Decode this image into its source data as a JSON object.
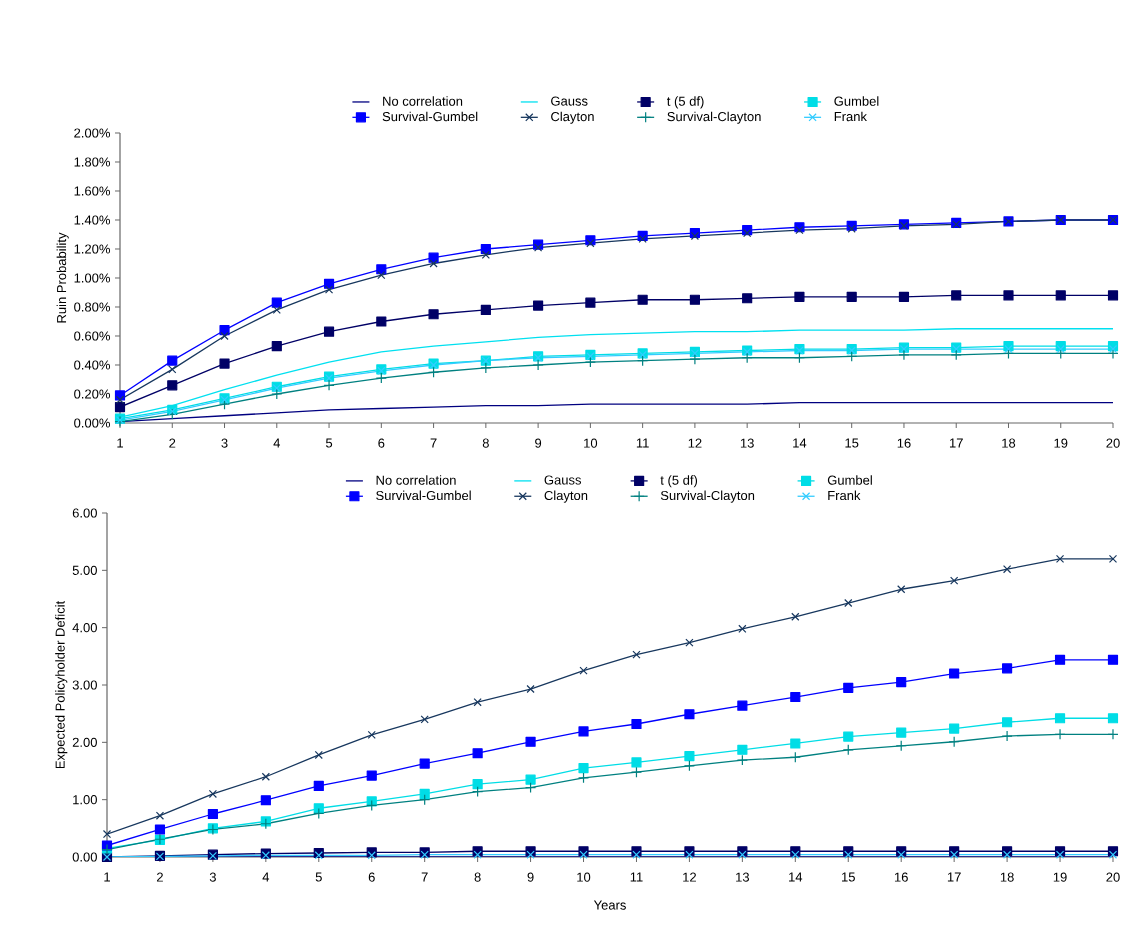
{
  "chart_data": [
    {
      "type": "line",
      "ylabel": "Ruin Probability",
      "legend": "top",
      "categories": [
        "1",
        "2",
        "3",
        "4",
        "5",
        "6",
        "7",
        "8",
        "9",
        "10",
        "11",
        "12",
        "13",
        "14",
        "15",
        "16",
        "17",
        "18",
        "19",
        "20"
      ],
      "ylim": [
        0,
        2
      ],
      "yticks": [
        {
          "value": 0,
          "label": "0.00%"
        },
        {
          "value": 0.2,
          "label": "0.20%"
        },
        {
          "value": 0.4,
          "label": "0.40%"
        },
        {
          "value": 0.6,
          "label": "0.60%"
        },
        {
          "value": 0.8,
          "label": "0.80%"
        },
        {
          "value": 1.0,
          "label": "1.00%"
        },
        {
          "value": 1.2,
          "label": "1.20%"
        },
        {
          "value": 1.4,
          "label": "1.40%"
        },
        {
          "value": 1.6,
          "label": "1.60%"
        },
        {
          "value": 1.8,
          "label": "1.80%"
        },
        {
          "value": 2.0,
          "label": "2.00%"
        }
      ],
      "series": [
        {
          "name": "No correlation",
          "color": "#000080",
          "marker": "none",
          "values": [
            0.01,
            0.03,
            0.05,
            0.07,
            0.09,
            0.1,
            0.11,
            0.12,
            0.12,
            0.13,
            0.13,
            0.13,
            0.13,
            0.14,
            0.14,
            0.14,
            0.14,
            0.14,
            0.14,
            0.14
          ]
        },
        {
          "name": "Gauss",
          "color": "#00e0f0",
          "marker": "none",
          "values": [
            0.04,
            0.12,
            0.23,
            0.33,
            0.42,
            0.49,
            0.53,
            0.56,
            0.59,
            0.61,
            0.62,
            0.63,
            0.63,
            0.64,
            0.64,
            0.64,
            0.65,
            0.65,
            0.65,
            0.65
          ]
        },
        {
          "name": "t (5 df)",
          "color": "#000066",
          "marker": "square",
          "values": [
            0.11,
            0.26,
            0.41,
            0.53,
            0.63,
            0.7,
            0.75,
            0.78,
            0.81,
            0.83,
            0.85,
            0.85,
            0.86,
            0.87,
            0.87,
            0.87,
            0.88,
            0.88,
            0.88,
            0.88
          ]
        },
        {
          "name": "Gumbel",
          "color": "#00dde6",
          "marker": "square",
          "values": [
            0.03,
            0.09,
            0.17,
            0.25,
            0.32,
            0.37,
            0.41,
            0.43,
            0.46,
            0.47,
            0.48,
            0.49,
            0.5,
            0.51,
            0.51,
            0.52,
            0.52,
            0.53,
            0.53,
            0.53
          ]
        },
        {
          "name": "Survival-Gumbel",
          "color": "#0000ff",
          "marker": "square",
          "values": [
            0.19,
            0.43,
            0.64,
            0.83,
            0.96,
            1.06,
            1.14,
            1.2,
            1.23,
            1.26,
            1.29,
            1.31,
            1.33,
            1.35,
            1.36,
            1.37,
            1.38,
            1.39,
            1.4,
            1.4
          ]
        },
        {
          "name": "Clayton",
          "color": "#17375e",
          "marker": "cross",
          "values": [
            0.16,
            0.37,
            0.6,
            0.78,
            0.92,
            1.02,
            1.1,
            1.16,
            1.21,
            1.24,
            1.27,
            1.29,
            1.31,
            1.33,
            1.34,
            1.36,
            1.37,
            1.39,
            1.4,
            1.4
          ]
        },
        {
          "name": "Survival-Clayton",
          "color": "#008080",
          "marker": "plus",
          "values": [
            0.01,
            0.06,
            0.13,
            0.2,
            0.26,
            0.31,
            0.35,
            0.38,
            0.4,
            0.42,
            0.43,
            0.44,
            0.45,
            0.45,
            0.46,
            0.47,
            0.47,
            0.48,
            0.48,
            0.48
          ]
        },
        {
          "name": "Frank",
          "color": "#33ccff",
          "marker": "cross",
          "values": [
            0.02,
            0.08,
            0.16,
            0.24,
            0.31,
            0.36,
            0.4,
            0.43,
            0.45,
            0.46,
            0.47,
            0.48,
            0.49,
            0.5,
            0.5,
            0.51,
            0.51,
            0.51,
            0.51,
            0.51
          ]
        }
      ]
    },
    {
      "type": "line",
      "xlabel": "Years",
      "ylabel": "Expected Policyholder Deficit",
      "legend": "top",
      "categories": [
        "1",
        "2",
        "3",
        "4",
        "5",
        "6",
        "7",
        "8",
        "9",
        "10",
        "11",
        "12",
        "13",
        "14",
        "15",
        "16",
        "17",
        "18",
        "19",
        "20"
      ],
      "ylim": [
        0,
        6
      ],
      "yticks": [
        {
          "value": 0,
          "label": "0.00"
        },
        {
          "value": 1,
          "label": "1.00"
        },
        {
          "value": 2,
          "label": "2.00"
        },
        {
          "value": 3,
          "label": "3.00"
        },
        {
          "value": 4,
          "label": "4.00"
        },
        {
          "value": 5,
          "label": "5.00"
        },
        {
          "value": 6,
          "label": "6.00"
        }
      ],
      "series": [
        {
          "name": "No correlation",
          "color": "#000080",
          "marker": "none",
          "values": [
            0,
            0,
            0,
            0,
            0,
            0,
            0,
            0,
            0,
            0,
            0,
            0,
            0,
            0,
            0,
            0,
            0,
            0,
            0,
            0
          ]
        },
        {
          "name": "Gauss",
          "color": "#00e0f0",
          "marker": "none",
          "values": [
            null,
            null,
            null,
            null,
            null,
            null,
            null,
            null,
            null,
            null,
            null,
            null,
            null,
            null,
            null,
            null,
            null,
            null,
            null,
            null
          ]
        },
        {
          "name": "t (5 df)",
          "color": "#000066",
          "marker": "square",
          "values": [
            0,
            0.02,
            0.04,
            0.06,
            0.07,
            0.08,
            0.08,
            0.1,
            0.1,
            0.1,
            0.1,
            0.1,
            0.1,
            0.1,
            0.1,
            0.1,
            0.1,
            0.1,
            0.1,
            0.1
          ]
        },
        {
          "name": "Gumbel",
          "color": "#00dde6",
          "marker": "square",
          "values": [
            0.15,
            0.3,
            0.5,
            0.62,
            0.85,
            0.97,
            1.1,
            1.27,
            1.35,
            1.55,
            1.65,
            1.76,
            1.87,
            1.98,
            2.1,
            2.17,
            2.24,
            2.35,
            2.42,
            2.42
          ]
        },
        {
          "name": "Survival-Gumbel",
          "color": "#0000ff",
          "marker": "square",
          "values": [
            0.2,
            0.48,
            0.75,
            0.99,
            1.24,
            1.42,
            1.63,
            1.81,
            2.01,
            2.19,
            2.32,
            2.49,
            2.64,
            2.79,
            2.95,
            3.05,
            3.2,
            3.29,
            3.44,
            3.44
          ]
        },
        {
          "name": "Clayton",
          "color": "#17375e",
          "marker": "cross",
          "values": [
            0.4,
            0.72,
            1.1,
            1.4,
            1.78,
            2.13,
            2.4,
            2.7,
            2.93,
            3.25,
            3.53,
            3.74,
            3.98,
            4.19,
            4.43,
            4.67,
            4.82,
            5.02,
            5.2,
            5.2
          ]
        },
        {
          "name": "Survival-Clayton",
          "color": "#008080",
          "marker": "plus",
          "values": [
            0.13,
            0.31,
            0.48,
            0.58,
            0.76,
            0.9,
            1.0,
            1.14,
            1.21,
            1.38,
            1.48,
            1.59,
            1.69,
            1.74,
            1.87,
            1.94,
            2.01,
            2.11,
            2.14,
            2.14
          ]
        },
        {
          "name": "Frank",
          "color": "#33ccff",
          "marker": "cross",
          "values": [
            0,
            0.01,
            0.02,
            0.03,
            0.03,
            0.03,
            0.04,
            0.04,
            0.04,
            0.04,
            0.04,
            0.04,
            0.04,
            0.04,
            0.04,
            0.04,
            0.04,
            0.04,
            0.04,
            0.04
          ]
        }
      ]
    }
  ]
}
